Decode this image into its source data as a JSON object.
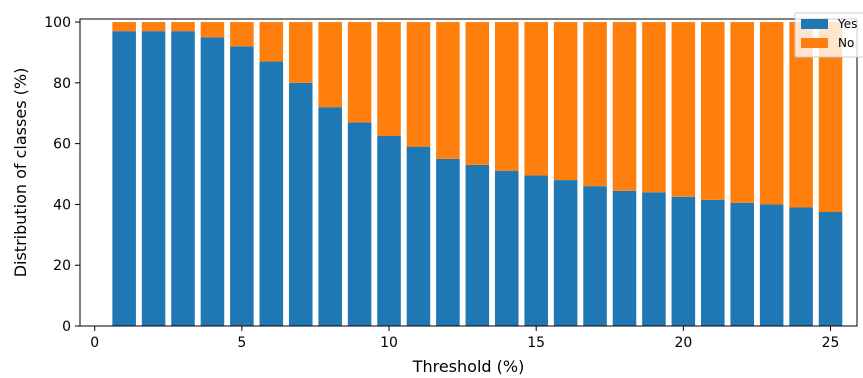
{
  "chart_data": {
    "type": "bar",
    "stacked": true,
    "xlabel": "Threshold (%)",
    "ylabel": "Distribution of classes (%)",
    "xlim": [
      -0.5,
      25.9
    ],
    "ylim": [
      0,
      101
    ],
    "xticks": [
      0,
      5,
      10,
      15,
      20,
      25
    ],
    "yticks": [
      0,
      20,
      40,
      60,
      80,
      100
    ],
    "grid": false,
    "legend_position": "top-right",
    "x": [
      1,
      2,
      3,
      4,
      5,
      6,
      7,
      8,
      9,
      10,
      11,
      12,
      13,
      14,
      15,
      16,
      17,
      18,
      19,
      20,
      21,
      22,
      23,
      24,
      25
    ],
    "series": [
      {
        "name": "Yes",
        "color": "#1f77b4",
        "values": [
          97,
          97,
          97,
          95,
          92,
          87,
          80,
          72,
          67,
          62.5,
          59,
          55,
          53,
          51,
          49.5,
          48,
          46,
          44.5,
          44,
          42.5,
          41.5,
          40.5,
          40,
          39,
          37.5
        ]
      },
      {
        "name": "No",
        "color": "#ff7f0e",
        "values": [
          3,
          3,
          3,
          5,
          8,
          13,
          20,
          28,
          33,
          37.5,
          41,
          45,
          47,
          49,
          50.5,
          52,
          54,
          55.5,
          56,
          57.5,
          58.5,
          59.5,
          60,
          61,
          62.5
        ]
      }
    ]
  }
}
